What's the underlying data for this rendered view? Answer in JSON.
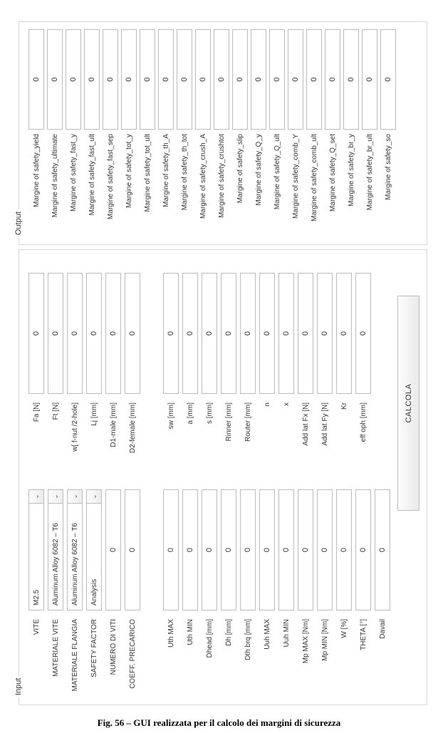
{
  "caption": "Fig. 56 – GUI realizzata per il calcolo dei margini di sicurezza",
  "panels": {
    "input_legend": "Input",
    "output_legend": "Output"
  },
  "dropdown_glyph": "⌄",
  "combos": {
    "vite": "M2.5",
    "mat_vite": "Aluminum Alloy 6082 – T6",
    "mat_flangia": "Aluminum Alloy 6082 – T6",
    "safety_factor": "Analysis"
  },
  "input": {
    "left": [
      {
        "label": "VITE",
        "type": "combo",
        "key": "combos.vite"
      },
      {
        "label": "MATERIALE VITE",
        "type": "combo",
        "key": "combos.mat_vite"
      },
      {
        "label": "MATERIALE FLANGIA",
        "type": "combo",
        "key": "combos.mat_flangia"
      },
      {
        "label": "SAFETY FACTOR",
        "type": "combo",
        "key": "combos.safety_factor"
      },
      {
        "label": "NUMERO DI VITI",
        "type": "field",
        "value": "0"
      },
      {
        "label": "COEFF. PRECARICO",
        "type": "field",
        "value": "0"
      },
      {
        "label": "",
        "type": "spacer"
      },
      {
        "label": "Uth MAX",
        "type": "field",
        "value": "0"
      },
      {
        "label": "Uth MIN",
        "type": "field",
        "value": "0"
      },
      {
        "label": "Dhead [mm]",
        "type": "field",
        "value": "0"
      },
      {
        "label": "Dh [mm]",
        "type": "field",
        "value": "0"
      },
      {
        "label": "Dth brq [mm]",
        "type": "field",
        "value": "0"
      },
      {
        "label": "Uuh MAX",
        "type": "field",
        "value": "0"
      },
      {
        "label": "Uuh MIN",
        "type": "field",
        "value": "0"
      },
      {
        "label": "Mp MAX [Nm]",
        "type": "field",
        "value": "0"
      },
      {
        "label": "Mp MIN [Nm]",
        "type": "field",
        "value": "0"
      },
      {
        "label": "W [%]",
        "type": "field",
        "value": "0"
      },
      {
        "label": "THETA [°]",
        "type": "field",
        "value": "0"
      },
      {
        "label": "Davail",
        "type": "field",
        "value": "0"
      }
    ],
    "right": [
      {
        "label": "Fa [N]",
        "type": "field",
        "value": "0"
      },
      {
        "label": "Ft [N]",
        "type": "field",
        "value": "0"
      },
      {
        "label": "w[ f-nut /2-hole]",
        "type": "field",
        "value": "0"
      },
      {
        "label": "Lj [mm]",
        "type": "field",
        "value": "0"
      },
      {
        "label": "D1-male [mm]",
        "type": "field",
        "value": "0"
      },
      {
        "label": "D2-female [mm]",
        "type": "field",
        "value": "0"
      },
      {
        "label": "",
        "type": "spacer"
      },
      {
        "label": "sw [mm]",
        "type": "field",
        "value": "0"
      },
      {
        "label": "a [mm]",
        "type": "field",
        "value": "0"
      },
      {
        "label": "s [mm]",
        "type": "field",
        "value": "0"
      },
      {
        "label": "Rinner [mm]",
        "type": "field",
        "value": "0"
      },
      {
        "label": "Router [mm]",
        "type": "field",
        "value": "0"
      },
      {
        "label": "n",
        "type": "field",
        "value": "0"
      },
      {
        "label": "x",
        "type": "field",
        "value": "0"
      },
      {
        "label": "Add lat Fx [N]",
        "type": "field",
        "value": "0"
      },
      {
        "label": "Add lat Fy [N]",
        "type": "field",
        "value": "0"
      },
      {
        "label": "Kr",
        "type": "field",
        "value": "0"
      },
      {
        "label": "eff oph [mm]",
        "type": "field",
        "value": "0"
      }
    ]
  },
  "calc_label": "CALCOLA",
  "output": [
    {
      "label": "Margine of safety_yield",
      "value": "0"
    },
    {
      "label": "Margine of safety_ultimate",
      "value": "0"
    },
    {
      "label": "Margine of safety_fast_y",
      "value": "0"
    },
    {
      "label": "Margine of safety_fast_ult",
      "value": "0"
    },
    {
      "label": "Margine of safety_fast_sep",
      "value": "0"
    },
    {
      "label": "Margine of safety_tot_y",
      "value": "0"
    },
    {
      "label": "Margine of safety_tot_ult",
      "value": "0"
    },
    {
      "label": "Margine of safety_th_A",
      "value": "0"
    },
    {
      "label": "Margine of safety_th_tot",
      "value": "0"
    },
    {
      "label": "Margine of safety_crush_A",
      "value": "0"
    },
    {
      "label": "Margine of safety_crushtot",
      "value": "0"
    },
    {
      "label": "Margine of safety_slip",
      "value": "0"
    },
    {
      "label": "Margine of safety_Q_y",
      "value": "0"
    },
    {
      "label": "Margine of safety_Q_ult",
      "value": "0"
    },
    {
      "label": "Margine of safety_comb_Y",
      "value": "0"
    },
    {
      "label": "Margine of safety_comb_ult",
      "value": "0"
    },
    {
      "label": "Margine of safety_Q_set",
      "value": "0"
    },
    {
      "label": "Margine of safety_br_y",
      "value": "0"
    },
    {
      "label": "Margine of safety_br_ult",
      "value": "0"
    },
    {
      "label": "Margine of safety_so",
      "value": "0"
    }
  ]
}
